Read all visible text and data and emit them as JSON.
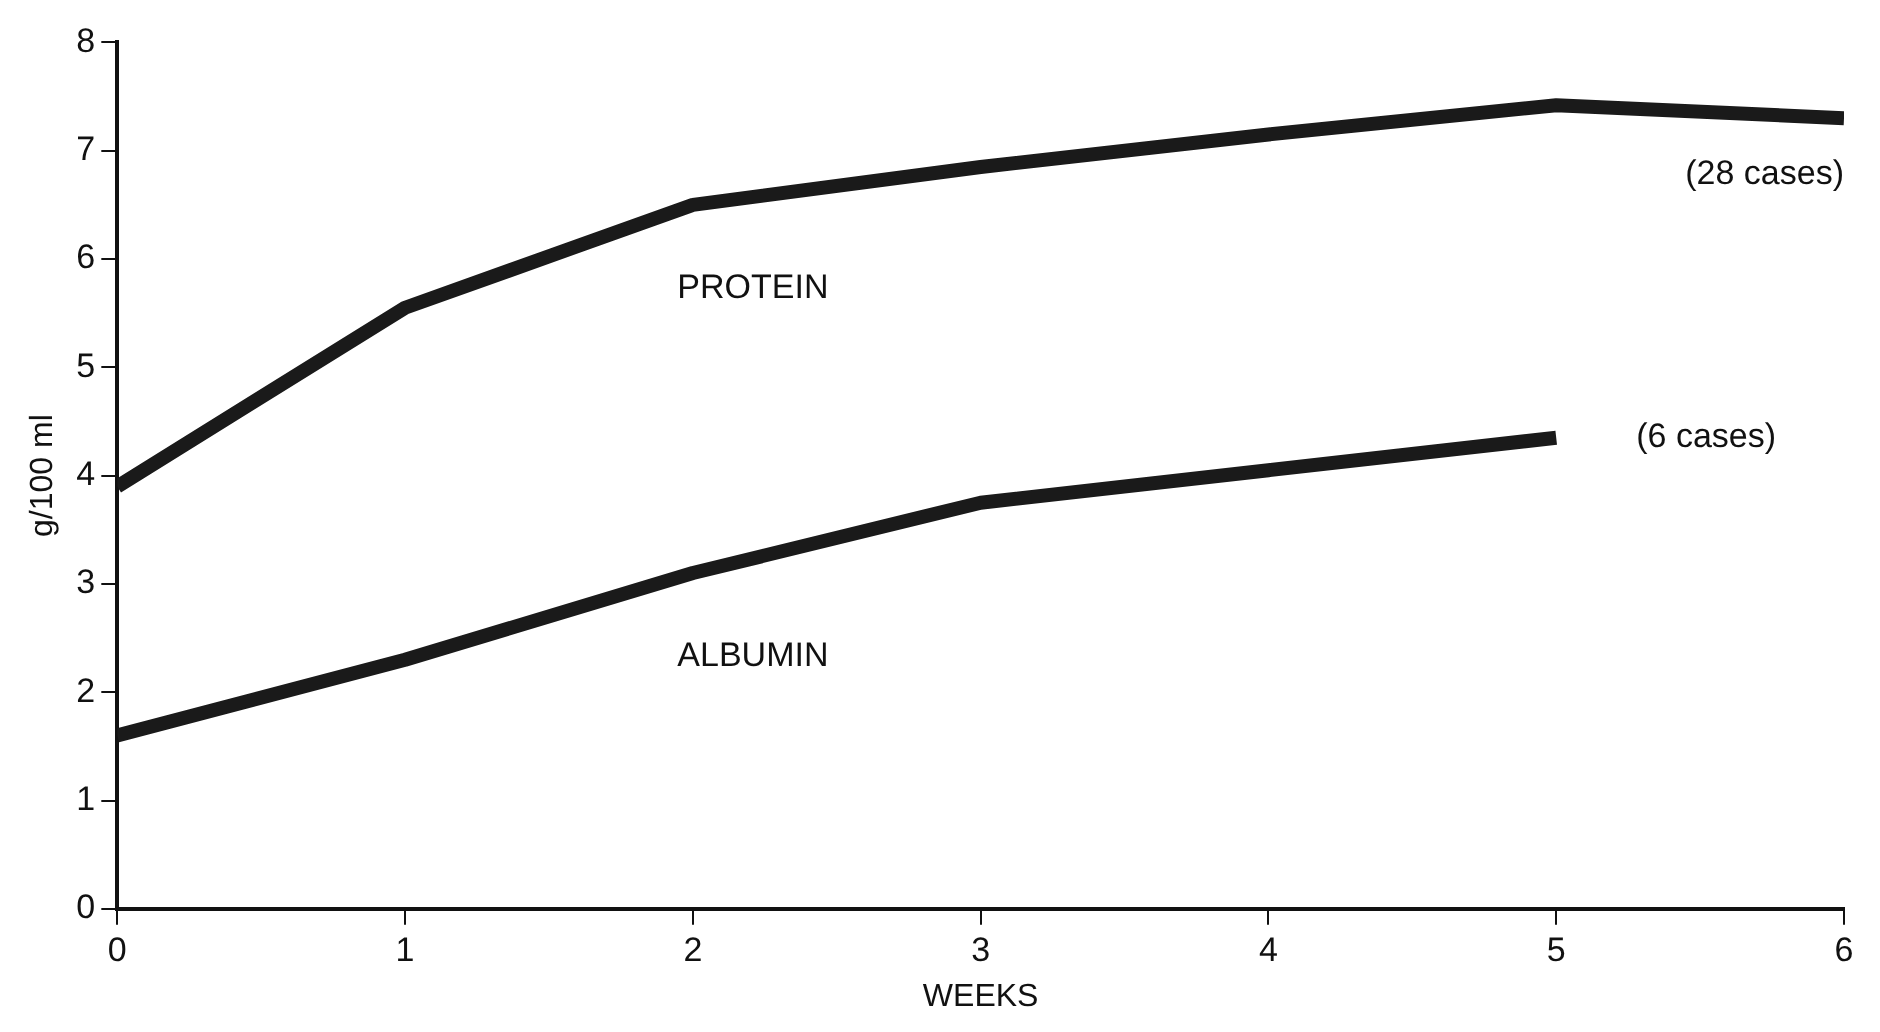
{
  "chart_data": {
    "type": "line",
    "xlabel": "WEEKS",
    "ylabel": "g/100 ml",
    "x": [
      0,
      1,
      2,
      3,
      4,
      5,
      6
    ],
    "series": [
      {
        "name": "PROTEIN",
        "color": "#1a1a1a",
        "values": [
          3.9,
          5.55,
          6.5,
          6.85,
          7.15,
          7.42,
          7.3
        ]
      },
      {
        "name": "ALBUMIN",
        "color": "#1a1a1a",
        "values": [
          1.6,
          2.3,
          3.1,
          3.75,
          4.05,
          4.35,
          null
        ]
      }
    ],
    "xlim": [
      0,
      6
    ],
    "xticks": [
      0,
      1,
      2,
      3,
      4,
      5,
      6
    ],
    "ylim": [
      0,
      8
    ],
    "yticks": [
      0,
      1,
      2,
      3,
      4,
      5,
      6,
      7,
      8
    ],
    "annotations": [
      "(28 cases)",
      "(6 cases)"
    ],
    "grid": false,
    "legend": false,
    "marker": "none",
    "line_style": "solid"
  }
}
